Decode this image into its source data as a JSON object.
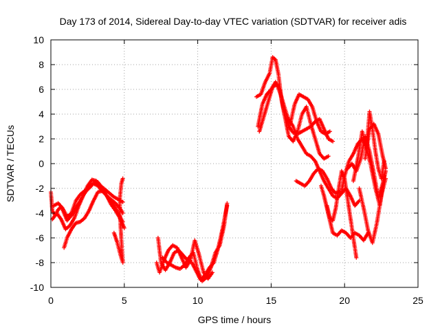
{
  "chart_data": {
    "type": "scatter",
    "title": "Day 173 of 2014, Sidereal Day-to-day VTEC variation (SDTVAR) for receiver adis",
    "xlabel": "GPS time / hours",
    "ylabel": "SDTVAR / TECUs",
    "xlim": [
      0,
      25
    ],
    "ylim": [
      -10,
      10
    ],
    "xticks": [
      "0",
      "5",
      "10",
      "15",
      "20",
      "25"
    ],
    "yticks": [
      "10",
      "8",
      "6",
      "4",
      "2",
      "0",
      "-2",
      "-4",
      "-6",
      "-8",
      "-10"
    ],
    "grid": true,
    "marker": "+",
    "color": "#ff0000",
    "series": [
      {
        "x": [
          0.0,
          0.1,
          0.3,
          0.5,
          0.7,
          0.9,
          1.1,
          1.4,
          1.7,
          2.0,
          2.3,
          2.6,
          2.9,
          3.2,
          3.5,
          3.8,
          4.1,
          4.4,
          4.7,
          4.9
        ],
        "y": [
          -2.3,
          -3.8,
          -4.2,
          -3.7,
          -3.5,
          -4.0,
          -4.6,
          -4.2,
          -3.6,
          -3.0,
          -2.4,
          -1.9,
          -1.6,
          -1.8,
          -2.2,
          -2.6,
          -2.9,
          -3.2,
          -3.6,
          -4.0
        ]
      },
      {
        "x": [
          0.1,
          0.4,
          0.7,
          1.0,
          1.3,
          1.6,
          1.9,
          2.2,
          2.5,
          2.8,
          3.1,
          3.4,
          3.7,
          4.0,
          4.3,
          4.6,
          4.9
        ],
        "y": [
          -4.5,
          -4.0,
          -4.5,
          -5.3,
          -5.0,
          -4.4,
          -3.4,
          -2.6,
          -1.8,
          -1.3,
          -1.4,
          -1.8,
          -2.1,
          -2.4,
          -2.7,
          -2.9,
          -3.1
        ]
      },
      {
        "x": [
          0.2,
          0.5,
          0.8,
          1.1,
          1.4,
          1.7,
          2.0,
          2.3,
          2.6,
          2.9,
          3.2,
          3.5,
          3.8,
          4.1,
          4.4,
          4.7,
          4.9
        ],
        "y": [
          -3.4,
          -3.2,
          -3.6,
          -4.3,
          -4.0,
          -3.0,
          -2.5,
          -2.2,
          -2.0,
          -1.6,
          -1.5,
          -2.0,
          -2.6,
          -3.1,
          -3.6,
          -4.3,
          -4.7
        ]
      },
      {
        "x": [
          0.9,
          1.1,
          1.4,
          1.7,
          2.0,
          2.3,
          2.6,
          2.9,
          3.2,
          3.5,
          3.8,
          4.1,
          4.4,
          4.7,
          5.0
        ],
        "y": [
          -6.8,
          -6.0,
          -5.3,
          -4.8,
          -4.7,
          -4.4,
          -3.8,
          -3.0,
          -2.3,
          -2.2,
          -2.6,
          -3.3,
          -3.8,
          -4.4,
          -5.2
        ]
      },
      {
        "x": [
          4.3,
          4.5,
          4.7,
          4.9,
          4.8,
          4.7,
          4.7,
          4.8,
          4.9
        ],
        "y": [
          -5.6,
          -6.3,
          -7.2,
          -8.0,
          -6.2,
          -4.0,
          -2.8,
          -1.6,
          -1.2
        ]
      },
      {
        "x": [
          7.3,
          7.5,
          7.8,
          8.1,
          8.4,
          8.7,
          9.0,
          9.3,
          9.6,
          9.9,
          10.2,
          10.5,
          10.8,
          11.1,
          11.4,
          11.7,
          12.0
        ],
        "y": [
          -6.0,
          -8.0,
          -8.6,
          -8.0,
          -7.2,
          -7.0,
          -7.4,
          -7.8,
          -8.0,
          -8.7,
          -9.4,
          -9.0,
          -8.4,
          -8.0,
          -6.8,
          -5.2,
          -3.4
        ]
      },
      {
        "x": [
          7.2,
          7.4,
          7.7,
          8.0,
          8.3,
          8.6,
          8.9,
          9.2,
          9.5,
          9.8,
          10.1,
          10.4,
          10.7,
          11.0
        ],
        "y": [
          -8.0,
          -8.8,
          -7.8,
          -7.0,
          -6.6,
          -6.8,
          -7.6,
          -8.4,
          -7.8,
          -6.2,
          -7.4,
          -8.8,
          -9.3,
          -8.8
        ]
      },
      {
        "x": [
          7.6,
          7.9,
          8.2,
          8.5,
          8.8,
          9.1,
          9.4,
          9.7,
          10.0,
          10.3,
          10.6,
          10.9,
          11.2,
          11.5,
          11.8,
          12.0
        ],
        "y": [
          -7.6,
          -8.0,
          -8.2,
          -8.4,
          -8.5,
          -8.2,
          -7.6,
          -7.2,
          -8.6,
          -9.5,
          -9.2,
          -8.4,
          -7.2,
          -6.6,
          -5.0,
          -3.2
        ]
      },
      {
        "x": [
          14.0,
          14.3,
          14.6,
          14.9,
          15.1,
          15.3,
          15.5,
          15.7,
          15.9,
          16.2,
          16.5,
          16.8,
          17.1,
          17.4,
          17.7,
          18.0,
          18.3,
          18.6,
          18.9,
          19.2
        ],
        "y": [
          5.4,
          5.6,
          6.6,
          7.3,
          8.6,
          8.4,
          7.2,
          5.2,
          4.0,
          3.0,
          2.5,
          2.4,
          2.6,
          2.8,
          3.0,
          3.4,
          3.6,
          2.8,
          2.0,
          1.8
        ]
      },
      {
        "x": [
          14.1,
          14.4,
          14.7,
          15.0,
          15.3,
          15.6,
          15.9,
          16.2,
          16.5,
          16.8,
          17.1,
          17.4,
          17.7,
          18.0,
          18.3,
          18.6,
          18.9
        ],
        "y": [
          3.0,
          4.8,
          5.6,
          6.0,
          6.6,
          6.0,
          4.0,
          2.2,
          1.8,
          2.6,
          4.0,
          4.6,
          3.2,
          2.0,
          0.8,
          0.4,
          0.6
        ]
      },
      {
        "x": [
          14.2,
          14.5,
          14.8,
          15.1,
          15.4,
          15.7,
          16.0,
          16.3,
          16.6,
          16.9,
          17.2,
          17.5,
          17.8,
          18.1,
          18.4,
          18.7,
          19.0
        ],
        "y": [
          2.6,
          3.8,
          5.0,
          6.2,
          6.4,
          5.4,
          4.2,
          3.2,
          4.8,
          5.6,
          5.4,
          5.2,
          4.6,
          3.4,
          2.6,
          2.4,
          2.6
        ]
      },
      {
        "x": [
          16.2,
          16.5,
          16.8,
          17.1,
          17.4,
          17.7,
          18.0,
          18.3,
          18.6,
          18.9,
          19.2,
          19.5,
          19.8,
          20.1,
          20.4,
          20.7,
          21.0
        ],
        "y": [
          3.6,
          3.0,
          2.0,
          1.4,
          0.8,
          0.6,
          0.2,
          -0.6,
          -1.4,
          -2.0,
          -2.6,
          -2.8,
          -2.4,
          -2.0,
          -2.6,
          -3.4,
          -3.0
        ]
      },
      {
        "x": [
          16.7,
          17.0,
          17.3,
          17.6,
          17.9,
          18.2,
          18.5,
          18.8,
          19.1,
          19.4,
          19.7
        ],
        "y": [
          -1.4,
          -1.6,
          -1.8,
          -1.4,
          -0.8,
          -0.4,
          -0.6,
          -1.2,
          -2.0,
          -2.4,
          -2.2
        ]
      },
      {
        "x": [
          18.4,
          18.6,
          18.8,
          19.0,
          19.2,
          19.5,
          19.8,
          20.1,
          20.4,
          20.7,
          21.0,
          21.3,
          21.6
        ],
        "y": [
          -1.8,
          -2.6,
          -3.6,
          -4.6,
          -5.6,
          -5.8,
          -5.4,
          -5.6,
          -6.0,
          -5.6,
          -5.8,
          -6.2,
          -5.6
        ]
      },
      {
        "x": [
          18.8,
          19.0,
          19.2,
          19.4,
          19.6,
          19.8,
          20.0,
          20.2,
          20.4,
          20.6,
          20.8
        ],
        "y": [
          -3.4,
          -4.4,
          -4.6,
          -3.6,
          -2.0,
          -0.6,
          -1.2,
          -2.8,
          -4.4,
          -6.0,
          -7.6
        ]
      },
      {
        "x": [
          19.8,
          20.0,
          20.3,
          20.6,
          20.9,
          21.2,
          21.5,
          21.7,
          21.9,
          22.1,
          22.3,
          22.5,
          22.7
        ],
        "y": [
          -2.2,
          -1.0,
          0.2,
          0.8,
          1.6,
          2.0,
          1.4,
          4.2,
          2.8,
          1.0,
          -0.4,
          -1.2,
          0.2
        ]
      },
      {
        "x": [
          20.2,
          20.5,
          20.8,
          21.1,
          21.4,
          21.7,
          22.0,
          22.3,
          22.6,
          22.8
        ],
        "y": [
          -0.4,
          0.0,
          -0.6,
          0.4,
          2.2,
          1.0,
          -0.8,
          -2.8,
          -1.6,
          -0.6
        ]
      },
      {
        "x": [
          20.6,
          20.9,
          21.2,
          21.5,
          21.8,
          22.1,
          22.4,
          22.7
        ],
        "y": [
          -1.4,
          0.4,
          2.6,
          1.2,
          -0.2,
          -2.0,
          -3.4,
          -1.0
        ]
      },
      {
        "x": [
          21.0,
          21.3,
          21.6,
          21.9,
          22.2,
          22.5,
          22.8
        ],
        "y": [
          -2.0,
          -3.6,
          -5.4,
          -6.4,
          -4.8,
          -2.6,
          -1.2
        ]
      },
      {
        "x": [
          21.4,
          21.7,
          22.0,
          22.3,
          22.6,
          22.8
        ],
        "y": [
          0.4,
          2.8,
          3.2,
          2.4,
          0.6,
          -0.4
        ]
      }
    ]
  }
}
